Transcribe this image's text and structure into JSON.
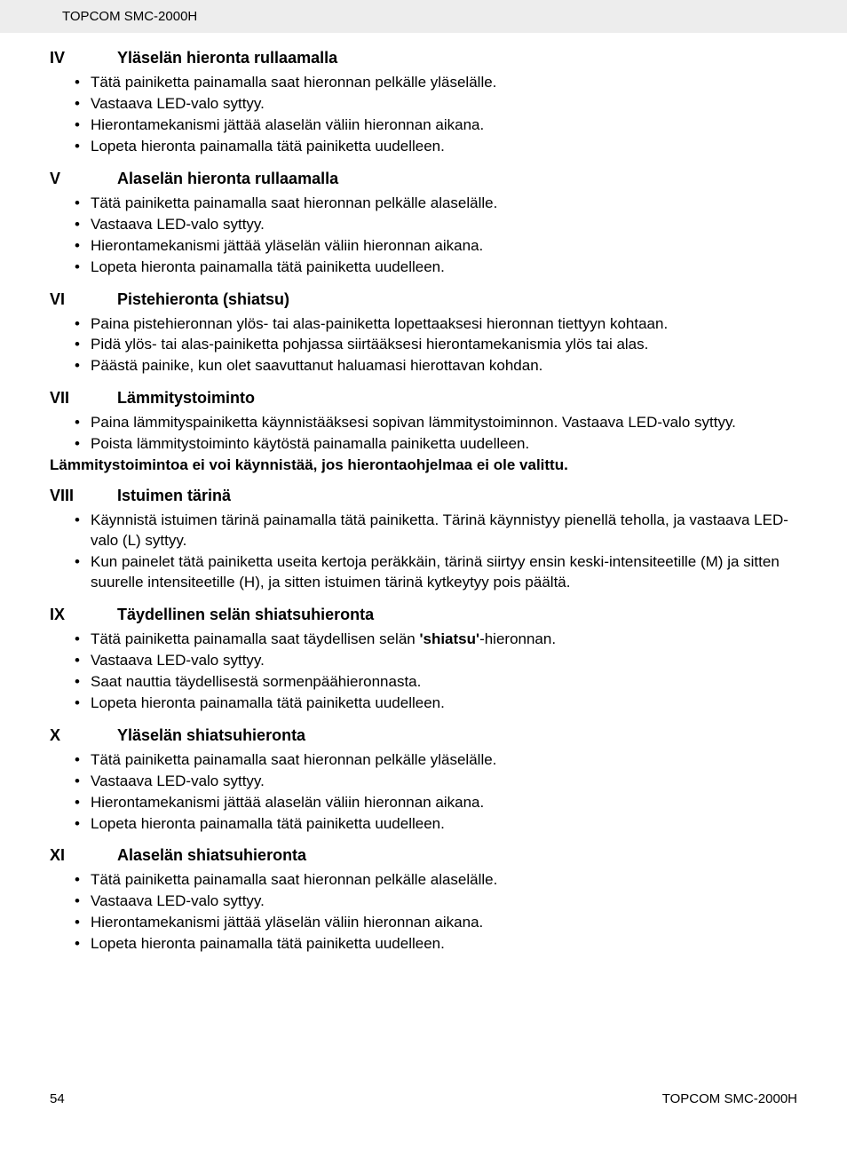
{
  "header": {
    "product": "TOPCOM SMC-2000H"
  },
  "sections": [
    {
      "num": "IV",
      "title": "Yläselän hieronta rullaamalla",
      "items": [
        "Tätä painiketta painamalla saat hieronnan pelkälle yläselälle.",
        "Vastaava LED-valo syttyy.",
        "Hierontamekanismi jättää alaselän väliin hieronnan aikana.",
        "Lopeta hieronta painamalla tätä painiketta uudelleen."
      ]
    },
    {
      "num": "V",
      "title": "Alaselän hieronta rullaamalla",
      "items": [
        "Tätä painiketta painamalla saat hieronnan pelkälle alaselälle.",
        "Vastaava LED-valo syttyy.",
        "Hierontamekanismi jättää yläselän väliin hieronnan aikana.",
        "Lopeta hieronta painamalla tätä painiketta uudelleen."
      ]
    },
    {
      "num": "VI",
      "title": "Pistehieronta (shiatsu)",
      "items": [
        "Paina pistehieronnan ylös- tai alas-painiketta lopettaaksesi hieronnan tiettyyn kohtaan.",
        "Pidä ylös- tai alas-painiketta pohjassa siirtääksesi hierontamekanismia ylös tai alas.",
        "Päästä painike, kun olet saavuttanut haluamasi hierottavan kohdan."
      ]
    },
    {
      "num": "VII",
      "title": "Lämmitystoiminto",
      "items": [
        "Paina lämmityspainiketta käynnistääksesi sopivan lämmitystoiminnon. Vastaava LED-valo syttyy.",
        "Poista lämmitystoiminto käytöstä painamalla painiketta uudelleen."
      ],
      "note": "Lämmitystoimintoa ei voi käynnistää, jos hierontaohjelmaa ei ole valittu."
    },
    {
      "num": "VIII",
      "title": "Istuimen tärinä",
      "items": [
        "Käynnistä istuimen tärinä painamalla tätä painiketta. Tärinä käynnistyy pienellä teholla, ja vastaava LED-valo (L) syttyy.",
        "Kun painelet tätä painiketta useita kertoja peräkkäin, tärinä siirtyy ensin keski-intensiteetille (M) ja sitten suurelle intensiteetille (H), ja sitten istuimen tärinä kytkeytyy pois päältä."
      ]
    },
    {
      "num": "IX",
      "title": "Täydellinen selän shiatsuhieronta",
      "items_rich": [
        {
          "pre": "Tätä painiketta painamalla saat täydellisen selän ",
          "bold": "'shiatsu'",
          "post": "-hieronnan."
        }
      ],
      "items": [
        "Vastaava LED-valo syttyy.",
        "Saat nauttia täydellisestä sormenpäähieronnasta.",
        "Lopeta hieronta painamalla tätä painiketta uudelleen."
      ]
    },
    {
      "num": "X",
      "title": "Yläselän shiatsuhieronta",
      "items": [
        "Tätä painiketta painamalla saat hieronnan pelkälle yläselälle.",
        "Vastaava LED-valo syttyy.",
        "Hierontamekanismi jättää alaselän väliin hieronnan aikana.",
        "Lopeta hieronta painamalla tätä painiketta uudelleen."
      ]
    },
    {
      "num": "XI",
      "title": "Alaselän shiatsuhieronta",
      "items": [
        "Tätä painiketta painamalla saat hieronnan pelkälle alaselälle.",
        "Vastaava LED-valo syttyy.",
        "Hierontamekanismi jättää yläselän väliin hieronnan aikana.",
        "Lopeta hieronta painamalla tätä painiketta uudelleen."
      ]
    }
  ],
  "footer": {
    "page_number": "54",
    "product": "TOPCOM SMC-2000H"
  }
}
